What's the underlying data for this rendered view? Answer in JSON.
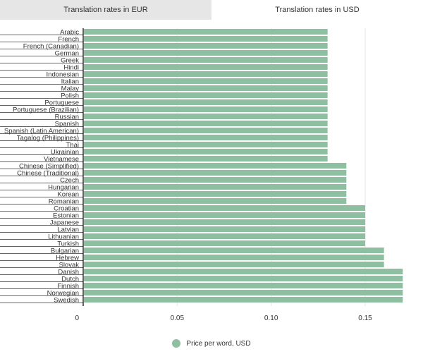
{
  "tabs": [
    {
      "label": "Translation rates in EUR",
      "active": false
    },
    {
      "label": "Translation rates in USD",
      "active": true
    }
  ],
  "colors": {
    "bar": "#8fbfa1",
    "tab_inactive": "#e6e6e6",
    "axis": "#000000",
    "grid": "#e6e6e6"
  },
  "chart_data": {
    "type": "bar",
    "orientation": "horizontal",
    "categories": [
      "Arabic",
      "French",
      "French (Canadian)",
      "German",
      "Greek",
      "Hindi",
      "Indonesian",
      "Italian",
      "Malay",
      "Polish",
      "Portuguese",
      "Portuguese (Brazilian)",
      "Russian",
      "Spanish",
      "Spanish (Latin American)",
      "Tagalog (Philippines)",
      "Thai",
      "Ukrainian",
      "Vietnamese",
      "Chinese (Simplified)",
      "Chinese (Traditional)",
      "Czech",
      "Hungarian",
      "Korean",
      "Romanian",
      "Croatian",
      "Estonian",
      "Japanese",
      "Latvian",
      "Lithuanian",
      "Turkish",
      "Bulgarian",
      "Hebrew",
      "Slovak",
      "Danish",
      "Dutch",
      "Finnish",
      "Norwegian",
      "Swedish"
    ],
    "series": [
      {
        "name": "Price per word, USD",
        "values": [
          0.13,
          0.13,
          0.13,
          0.13,
          0.13,
          0.13,
          0.13,
          0.13,
          0.13,
          0.13,
          0.13,
          0.13,
          0.13,
          0.13,
          0.13,
          0.13,
          0.13,
          0.13,
          0.13,
          0.14,
          0.14,
          0.14,
          0.14,
          0.14,
          0.14,
          0.15,
          0.15,
          0.15,
          0.15,
          0.15,
          0.15,
          0.16,
          0.16,
          0.16,
          0.17,
          0.17,
          0.17,
          0.17,
          0.17
        ]
      }
    ],
    "xlim": [
      0,
      0.17
    ],
    "xticks": [
      0,
      0.05,
      0.1,
      0.15
    ],
    "xtick_labels": [
      "0",
      "0.05",
      "0.10",
      "0.15"
    ],
    "grid": true,
    "legend_position": "bottom"
  }
}
